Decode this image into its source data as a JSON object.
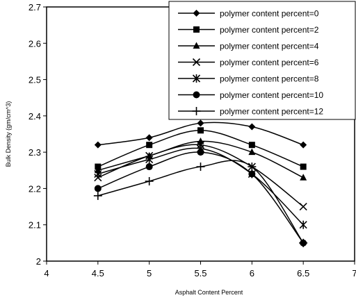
{
  "chart_data": {
    "type": "line",
    "title": "",
    "xlabel": "Asphalt Content Percent",
    "ylabel": "Bulk Density (gm/cm^3)",
    "xlim": [
      4,
      7
    ],
    "ylim": [
      2,
      2.7
    ],
    "x_ticks": [
      "4",
      "4.5",
      "5",
      "5.5",
      "6",
      "6.5",
      "7"
    ],
    "y_ticks": [
      "2",
      "2.1",
      "2.2",
      "2.3",
      "2.4",
      "2.5",
      "2.6",
      "2.7"
    ],
    "grid": false,
    "legend_position": "top-right",
    "x": [
      4.5,
      5,
      5.5,
      6,
      6.5
    ],
    "series": [
      {
        "name": "polymer content percent=0",
        "marker": "diamond",
        "values": [
          2.32,
          2.34,
          2.38,
          2.37,
          2.32
        ]
      },
      {
        "name": "polymer content percent=2",
        "marker": "square",
        "values": [
          2.26,
          2.32,
          2.36,
          2.32,
          2.26
        ]
      },
      {
        "name": "polymer content percent=4",
        "marker": "triangle",
        "values": [
          2.25,
          2.29,
          2.33,
          2.3,
          2.23
        ]
      },
      {
        "name": "polymer content percent=6",
        "marker": "x",
        "values": [
          2.23,
          2.29,
          2.32,
          2.26,
          2.15
        ]
      },
      {
        "name": "polymer content percent=8",
        "marker": "asterisk",
        "values": [
          2.24,
          2.28,
          2.31,
          2.24,
          2.1
        ]
      },
      {
        "name": "polymer content percent=10",
        "marker": "circle",
        "values": [
          2.2,
          2.26,
          2.3,
          2.24,
          2.05
        ]
      },
      {
        "name": "polymer content percent=12",
        "marker": "plus",
        "values": [
          2.18,
          2.22,
          2.26,
          2.26,
          2.05
        ]
      }
    ],
    "line_color": "#000000"
  }
}
